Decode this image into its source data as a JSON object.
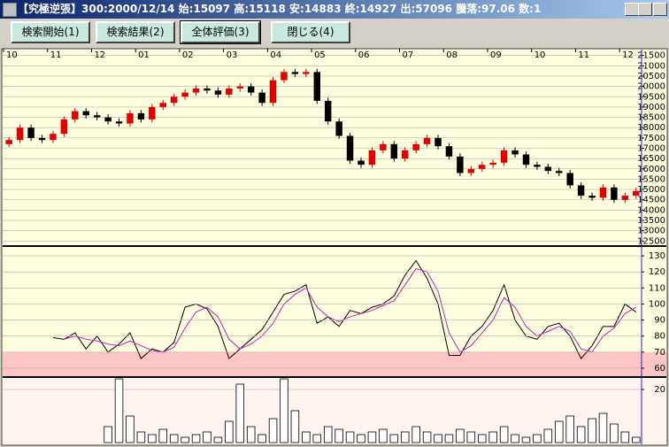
{
  "window": {
    "title": "【究極逆張】300:2000/12/14 始:15097 高:15118 安:14883 終:14927 出:57096 騰落:97.06 数:1"
  },
  "toolbar": {
    "buttons": [
      "検索開始(1)",
      "検索結果(2)",
      "全体評価(3)",
      "閉じる(4)"
    ]
  },
  "chart_data": [
    {
      "type": "candlestick",
      "categories": [
        "10",
        null,
        null,
        null,
        "11",
        null,
        null,
        null,
        "12",
        null,
        null,
        null,
        "01",
        null,
        null,
        null,
        "02",
        null,
        null,
        null,
        "03",
        null,
        null,
        null,
        "04",
        null,
        null,
        null,
        "05",
        null,
        null,
        null,
        "06",
        null,
        null,
        null,
        "07",
        null,
        null,
        null,
        "08",
        null,
        null,
        null,
        "09",
        null,
        null,
        null,
        "10",
        null,
        null,
        null,
        "11",
        null,
        null,
        null,
        "12",
        null
      ],
      "open": [
        17200,
        17400,
        18000,
        17500,
        17400,
        17700,
        18400,
        18800,
        18600,
        18500,
        18300,
        18200,
        18700,
        18400,
        19000,
        19200,
        19500,
        19700,
        19900,
        19800,
        19600,
        19900,
        20000,
        19700,
        19200,
        20300,
        20700,
        20600,
        20700,
        19300,
        18300,
        17600,
        16400,
        16200,
        16900,
        17200,
        16500,
        16900,
        17200,
        17500,
        17100,
        16600,
        15800,
        16000,
        16200,
        16300,
        16900,
        16700,
        16200,
        16100,
        15900,
        15800,
        15200,
        14700,
        14600,
        15100,
        14500,
        14700
      ],
      "high": [
        17550,
        18150,
        18150,
        17650,
        17850,
        18550,
        18950,
        18950,
        18750,
        18650,
        18450,
        18850,
        18850,
        19150,
        19350,
        19650,
        19850,
        20050,
        20050,
        19950,
        20050,
        20150,
        20150,
        19850,
        20450,
        20850,
        20850,
        20850,
        20850,
        19450,
        18450,
        17750,
        16550,
        17050,
        17350,
        17350,
        17050,
        17350,
        17650,
        17650,
        17250,
        16750,
        16150,
        16350,
        16450,
        17050,
        17050,
        16850,
        16350,
        16250,
        16050,
        15950,
        15350,
        14850,
        15250,
        15250,
        14850,
        15100
      ],
      "low": [
        17050,
        17250,
        17350,
        17250,
        17250,
        17550,
        18250,
        18450,
        18350,
        18150,
        18050,
        18050,
        18250,
        18250,
        18850,
        19050,
        19350,
        19550,
        19650,
        19450,
        19450,
        19750,
        19550,
        19050,
        19050,
        20150,
        20450,
        20450,
        19150,
        18150,
        17450,
        16250,
        16050,
        16050,
        16750,
        16350,
        16350,
        16750,
        17050,
        16950,
        16450,
        15650,
        15650,
        15850,
        16050,
        16150,
        16550,
        16050,
        15950,
        15750,
        15650,
        15050,
        14550,
        14450,
        14450,
        14350,
        14350,
        14550
      ],
      "close": [
        17400,
        18000,
        17500,
        17400,
        17700,
        18400,
        18800,
        18600,
        18500,
        18300,
        18200,
        18700,
        18400,
        19000,
        19200,
        19500,
        19700,
        19900,
        19800,
        19600,
        19900,
        20000,
        19700,
        19200,
        20300,
        20700,
        20600,
        20700,
        19300,
        18300,
        17600,
        16400,
        16200,
        16900,
        17200,
        16500,
        16900,
        17200,
        17500,
        17100,
        16600,
        15800,
        16000,
        16200,
        16300,
        16900,
        16700,
        16200,
        16100,
        15900,
        15800,
        15200,
        14700,
        14600,
        15100,
        14500,
        14700,
        14927
      ],
      "up_color": "#e00000",
      "down_color": "#000000",
      "ylim": [
        12300,
        21700
      ],
      "yticks": [
        12500,
        13000,
        13500,
        14000,
        14500,
        15000,
        15500,
        16000,
        16500,
        17000,
        17500,
        18000,
        18500,
        19000,
        19500,
        20000,
        20500,
        21000,
        21500
      ],
      "grid": true
    },
    {
      "type": "line",
      "series": [
        {
          "color": "#000000",
          "values": [
            null,
            null,
            null,
            null,
            79,
            78,
            82,
            72,
            80,
            70,
            75,
            82,
            66,
            72,
            70,
            76,
            98,
            100,
            97,
            86,
            66,
            72,
            78,
            84,
            95,
            106,
            108,
            112,
            88,
            92,
            86,
            96,
            94,
            98,
            100,
            105,
            118,
            127,
            116,
            100,
            68,
            68,
            80,
            86,
            96,
            112,
            90,
            80,
            78,
            86,
            88,
            80,
            66,
            74,
            86,
            86,
            100,
            95
          ]
        },
        {
          "color": "#c020c0",
          "values": [
            null,
            null,
            null,
            null,
            null,
            78,
            80,
            78,
            77,
            75,
            74,
            77,
            74,
            71,
            70,
            73,
            85,
            95,
            98,
            92,
            78,
            72,
            75,
            80,
            88,
            100,
            106,
            110,
            98,
            92,
            89,
            92,
            94,
            96,
            99,
            102,
            112,
            122,
            120,
            108,
            82,
            70,
            74,
            82,
            90,
            104,
            98,
            86,
            80,
            83,
            86,
            83,
            72,
            70,
            80,
            85,
            94,
            98
          ]
        }
      ],
      "shade_below": 70,
      "shade_color": "#ffc4c4",
      "ylim": [
        55,
        135
      ],
      "yticks": [
        60,
        70,
        80,
        90,
        100,
        110,
        120,
        130
      ],
      "grid": true
    },
    {
      "type": "bar",
      "values": [
        0,
        0,
        0,
        0,
        0,
        0,
        0,
        0,
        0,
        6,
        24,
        10,
        4,
        3,
        5,
        3,
        2,
        3,
        4,
        2,
        8,
        22,
        6,
        3,
        9,
        24,
        12,
        4,
        3,
        6,
        5,
        4,
        3,
        4,
        5,
        3,
        4,
        6,
        4,
        3,
        3,
        5,
        4,
        3,
        4,
        6,
        3,
        2,
        3,
        5,
        8,
        10,
        6,
        9,
        11,
        7,
        4,
        2
      ],
      "color": "#000000",
      "ylim": [
        0,
        24
      ],
      "yticks": [
        20
      ],
      "grid": true
    }
  ]
}
